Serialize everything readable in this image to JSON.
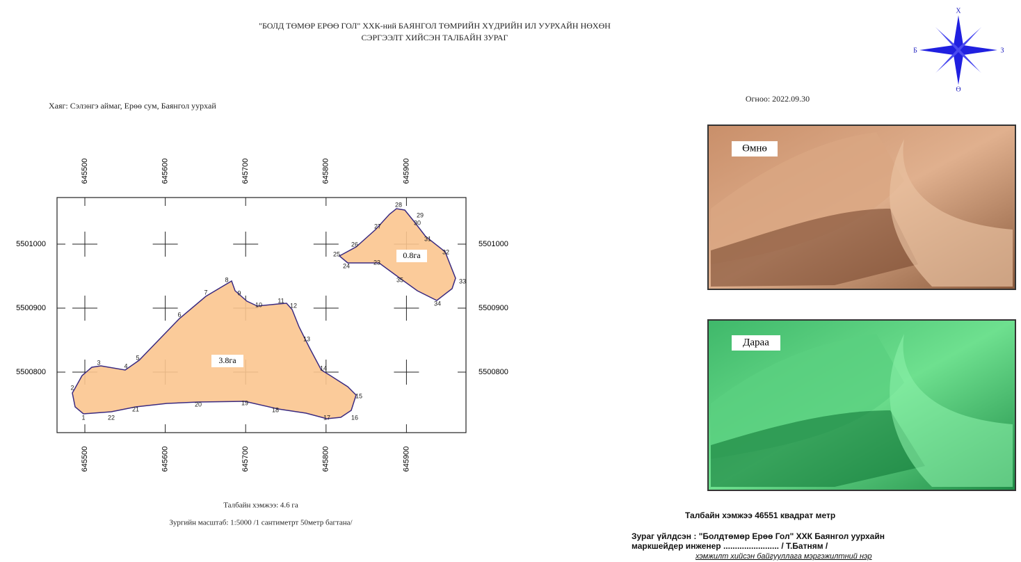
{
  "header": {
    "title_lines": [
      "\"БОЛД ТӨМӨР ЕРӨӨ ГОЛ\" ХХК-ний БАЯНГОЛ ТӨМРИЙН ХҮДРИЙН ИЛ УУРХАЙН НӨХӨН",
      "СЭРГЭЭЛТ ХИЙСЭН ТАЛБАЙН ЗУРАГ"
    ]
  },
  "compass": {
    "north": "Х",
    "west": "Б",
    "east": "З",
    "south": "Ө"
  },
  "address": "Хаяг: Сэлэнгэ аймаг, Ерөө сум, Баянгол уурхай",
  "date": "Огноо: 2022.09.30",
  "map": {
    "x_labels": [
      645500,
      645600,
      645700,
      645800,
      645900
    ],
    "y_labels": [
      5501000,
      5500900,
      5500800
    ],
    "areas": [
      "3.8га",
      "0.8га"
    ],
    "points": [
      1,
      2,
      3,
      4,
      5,
      6,
      7,
      8,
      9,
      10,
      11,
      12,
      13,
      14,
      15,
      16,
      17,
      18,
      19,
      20,
      21,
      22,
      23,
      24,
      25,
      26,
      27,
      28,
      29,
      30,
      31,
      32,
      33,
      34,
      35
    ]
  },
  "photos": {
    "before": "Өмнө",
    "after": "Дараа"
  },
  "footer_left": {
    "area": "Талбайн хэмжээ: 4.6 га",
    "scale": "Зургийн масштаб: 1:5000 /1 сантиметрт 50метр багтана/"
  },
  "footer_right": {
    "area_prefix": "Талбайн хэмжээ",
    "area_value": 46551,
    "area_suffix": "квадрат метр",
    "made_by": "Зураг үйлдсэн : \"Болдтөмөр Ерөө Гол\" ХХК Баянгол уурхайн",
    "engineer": "маркшейдер инженер ........................ / Т.Батням /",
    "note": "хэмжилт хийсэн байгууллага мэргэжилтний нэр"
  }
}
